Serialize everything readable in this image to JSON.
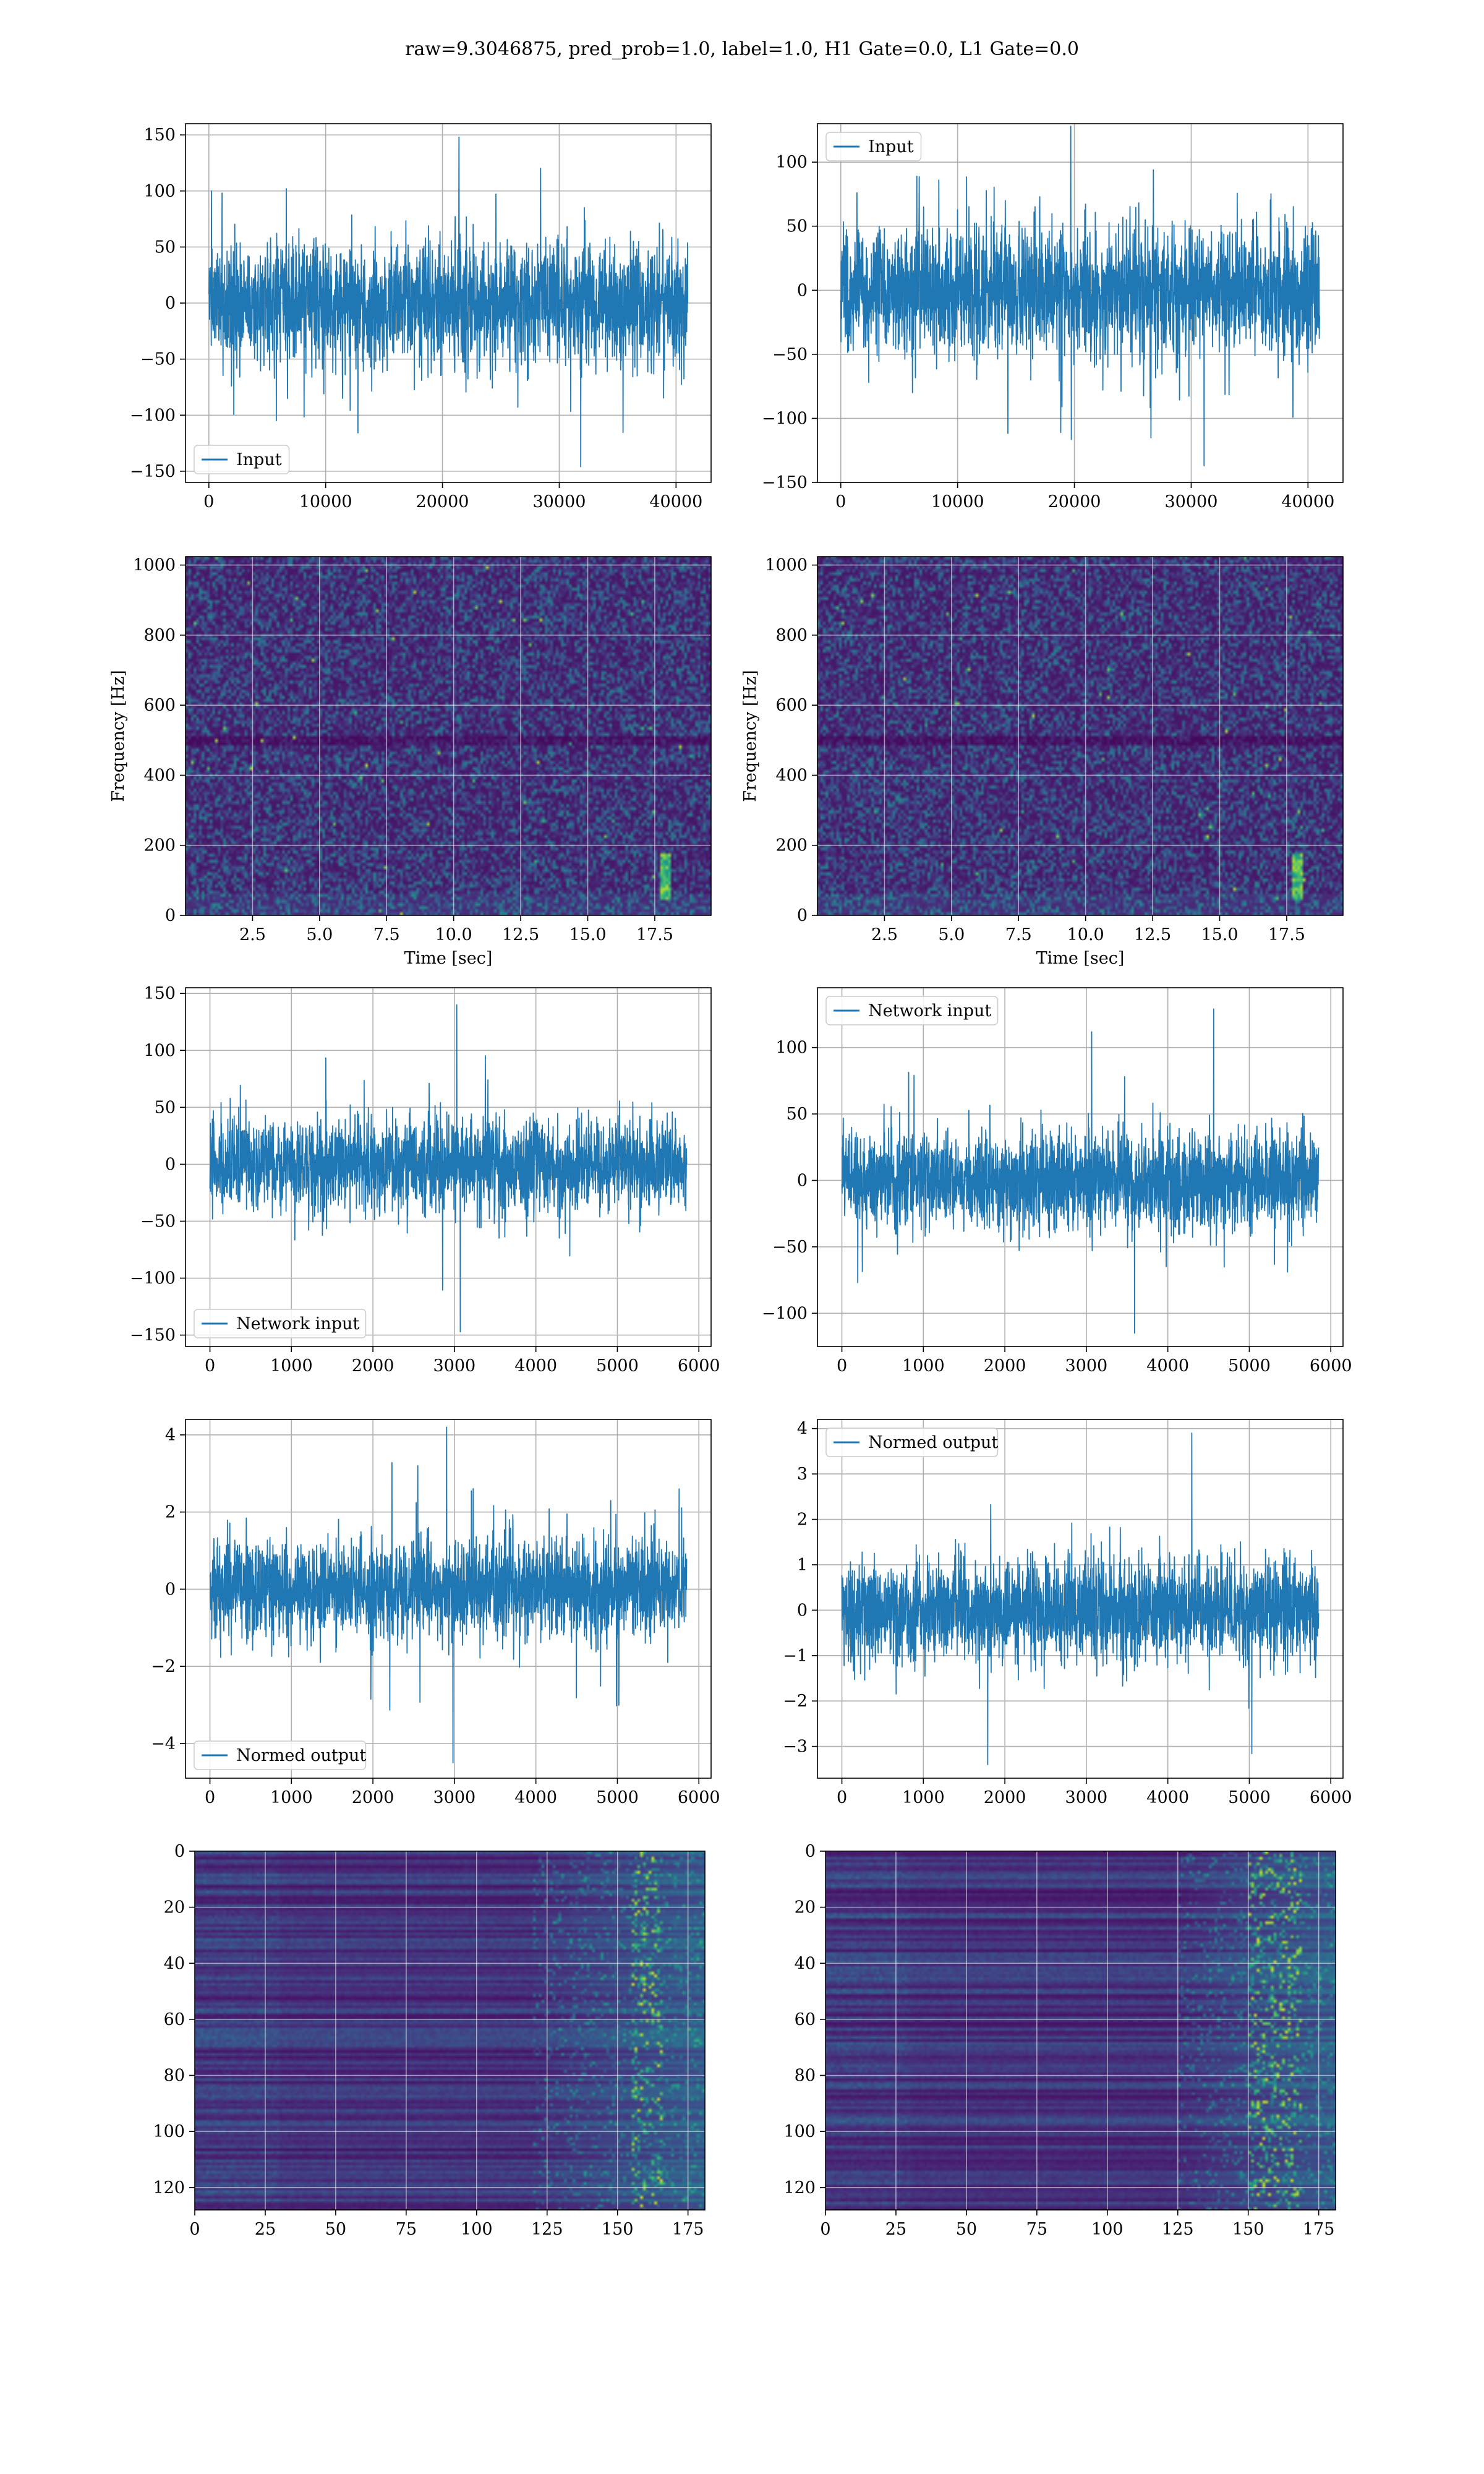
{
  "figure": {
    "suptitle": "raw=9.3046875, pred_prob=1.0, label=1.0, H1 Gate=0.0, L1 Gate=0.0"
  },
  "colors": {
    "line": "#1f77b4",
    "grid": "#b0b0b0",
    "viridis_low": "#440154",
    "viridis_mid": "#21918c",
    "viridis_high": "#fde725"
  },
  "chart_data": [
    {
      "id": "input-left",
      "type": "line",
      "title": "",
      "xlim": [
        -2000,
        43000
      ],
      "ylim": [
        -160,
        160
      ],
      "xticks": [
        0,
        10000,
        20000,
        30000,
        40000
      ],
      "xtick_labels": [
        "0",
        "10000",
        "20000",
        "30000",
        "40000"
      ],
      "yticks": [
        -150,
        -100,
        -50,
        0,
        50,
        100,
        150
      ],
      "ytick_labels": [
        "−150",
        "−100",
        "−50",
        "0",
        "50",
        "100",
        "150"
      ],
      "xlabel": "",
      "ylabel": "",
      "legend": {
        "label": "Input",
        "loc": "lower left"
      },
      "series": [
        {
          "name": "Input",
          "x_range": [
            0,
            41000
          ],
          "typical_envelope": [
            -60,
            60
          ],
          "peak_max": 148,
          "peak_min": -146
        }
      ]
    },
    {
      "id": "input-right",
      "type": "line",
      "title": "",
      "xlim": [
        -2000,
        43000
      ],
      "ylim": [
        -150,
        130
      ],
      "xticks": [
        0,
        10000,
        20000,
        30000,
        40000
      ],
      "xtick_labels": [
        "0",
        "10000",
        "20000",
        "30000",
        "40000"
      ],
      "yticks": [
        -150,
        -100,
        -50,
        0,
        50,
        100
      ],
      "ytick_labels": [
        "−150",
        "−100",
        "−50",
        "0",
        "50",
        "100"
      ],
      "xlabel": "",
      "ylabel": "",
      "legend": {
        "label": "Input",
        "loc": "upper left"
      },
      "series": [
        {
          "name": "Input",
          "x_range": [
            0,
            41000
          ],
          "typical_envelope": [
            -55,
            55
          ],
          "peak_max": 128,
          "peak_min": -137
        }
      ]
    },
    {
      "id": "spectrogram-left",
      "type": "heatmap",
      "title": "",
      "xlim": [
        0,
        19.6
      ],
      "ylim": [
        0,
        1024
      ],
      "xticks": [
        2.5,
        5.0,
        7.5,
        10.0,
        12.5,
        15.0,
        17.5
      ],
      "xtick_labels": [
        "2.5",
        "5.0",
        "7.5",
        "10.0",
        "12.5",
        "15.0",
        "17.5"
      ],
      "yticks": [
        0,
        200,
        400,
        600,
        800,
        1000
      ],
      "ytick_labels": [
        "0",
        "200",
        "400",
        "600",
        "800",
        "1000"
      ],
      "xlabel": "Time [sec]",
      "ylabel": "Frequency [Hz]",
      "colormap": "viridis",
      "features": {
        "dark_band_hz": 500,
        "bright_track": {
          "time": 17.9,
          "freq_range": [
            40,
            180
          ]
        }
      }
    },
    {
      "id": "spectrogram-right",
      "type": "heatmap",
      "title": "",
      "xlim": [
        0,
        19.6
      ],
      "ylim": [
        0,
        1024
      ],
      "xticks": [
        2.5,
        5.0,
        7.5,
        10.0,
        12.5,
        15.0,
        17.5
      ],
      "xtick_labels": [
        "2.5",
        "5.0",
        "7.5",
        "10.0",
        "12.5",
        "15.0",
        "17.5"
      ],
      "yticks": [
        0,
        200,
        400,
        600,
        800,
        1000
      ],
      "ytick_labels": [
        "0",
        "200",
        "400",
        "600",
        "800",
        "1000"
      ],
      "xlabel": "Time [sec]",
      "ylabel": "Frequency [Hz]",
      "colormap": "viridis",
      "features": {
        "dark_band_hz": 500,
        "bright_track": {
          "time": 17.9,
          "freq_range": [
            40,
            180
          ]
        }
      }
    },
    {
      "id": "network-input-left",
      "type": "line",
      "title": "",
      "xlim": [
        -300,
        6150
      ],
      "ylim": [
        -160,
        155
      ],
      "xticks": [
        0,
        1000,
        2000,
        3000,
        4000,
        5000,
        6000
      ],
      "xtick_labels": [
        "0",
        "1000",
        "2000",
        "3000",
        "4000",
        "5000",
        "6000"
      ],
      "yticks": [
        -150,
        -100,
        -50,
        0,
        50,
        100,
        150
      ],
      "ytick_labels": [
        "−150",
        "−100",
        "−50",
        "0",
        "50",
        "100",
        "150"
      ],
      "xlabel": "",
      "ylabel": "",
      "legend": {
        "label": "Network input",
        "loc": "lower left"
      },
      "series": [
        {
          "name": "Network input",
          "x_range": [
            0,
            5850
          ],
          "typical_envelope": [
            -45,
            45
          ],
          "peak_max": 140,
          "peak_min": -147
        }
      ]
    },
    {
      "id": "network-input-right",
      "type": "line",
      "title": "",
      "xlim": [
        -300,
        6150
      ],
      "ylim": [
        -125,
        145
      ],
      "xticks": [
        0,
        1000,
        2000,
        3000,
        4000,
        5000,
        6000
      ],
      "xtick_labels": [
        "0",
        "1000",
        "2000",
        "3000",
        "4000",
        "5000",
        "6000"
      ],
      "yticks": [
        -100,
        -50,
        0,
        50,
        100
      ],
      "ytick_labels": [
        "−100",
        "−50",
        "0",
        "50",
        "100"
      ],
      "xlabel": "",
      "ylabel": "",
      "legend": {
        "label": "Network input",
        "loc": "upper left"
      },
      "series": [
        {
          "name": "Network input",
          "x_range": [
            0,
            5850
          ],
          "typical_envelope": [
            -40,
            40
          ],
          "peak_max": 129,
          "peak_min": -115
        }
      ]
    },
    {
      "id": "normed-output-left",
      "type": "line",
      "title": "",
      "xlim": [
        -300,
        6150
      ],
      "ylim": [
        -4.9,
        4.4
      ],
      "xticks": [
        0,
        1000,
        2000,
        3000,
        4000,
        5000,
        6000
      ],
      "xtick_labels": [
        "0",
        "1000",
        "2000",
        "3000",
        "4000",
        "5000",
        "6000"
      ],
      "yticks": [
        -4,
        -2,
        0,
        2,
        4
      ],
      "ytick_labels": [
        "−4",
        "−2",
        "0",
        "2",
        "4"
      ],
      "xlabel": "",
      "ylabel": "",
      "legend": {
        "label": "Normed output",
        "loc": "lower left"
      },
      "series": [
        {
          "name": "Normed output",
          "x_range": [
            0,
            5850
          ],
          "typical_envelope": [
            -1.4,
            1.4
          ],
          "peak_max": 4.2,
          "peak_min": -4.5
        }
      ]
    },
    {
      "id": "normed-output-right",
      "type": "line",
      "title": "",
      "xlim": [
        -300,
        6150
      ],
      "ylim": [
        -3.7,
        4.2
      ],
      "xticks": [
        0,
        1000,
        2000,
        3000,
        4000,
        5000,
        6000
      ],
      "xtick_labels": [
        "0",
        "1000",
        "2000",
        "3000",
        "4000",
        "5000",
        "6000"
      ],
      "yticks": [
        -3,
        -2,
        -1,
        0,
        1,
        2,
        3,
        4
      ],
      "ytick_labels": [
        "−3",
        "−2",
        "−1",
        "0",
        "1",
        "2",
        "3",
        "4"
      ],
      "xlabel": "",
      "ylabel": "",
      "legend": {
        "label": "Normed output",
        "loc": "upper left"
      },
      "series": [
        {
          "name": "Normed output",
          "x_range": [
            0,
            5850
          ],
          "typical_envelope": [
            -1.3,
            1.3
          ],
          "peak_max": 3.9,
          "peak_min": -3.4
        }
      ]
    },
    {
      "id": "features-left",
      "type": "heatmap",
      "title": "",
      "xlim": [
        0,
        181
      ],
      "ylim": [
        128,
        0
      ],
      "xticks": [
        0,
        25,
        50,
        75,
        100,
        125,
        150,
        175
      ],
      "xtick_labels": [
        "0",
        "25",
        "50",
        "75",
        "100",
        "125",
        "150",
        "175"
      ],
      "yticks": [
        0,
        20,
        40,
        60,
        80,
        100,
        120
      ],
      "ytick_labels": [
        "0",
        "20",
        "40",
        "60",
        "80",
        "100",
        "120"
      ],
      "xlabel": "",
      "ylabel": "",
      "colormap": "viridis",
      "features": {
        "active_columns": [
          120,
          181
        ],
        "bright_columns": [
          155,
          165
        ]
      }
    },
    {
      "id": "features-right",
      "type": "heatmap",
      "title": "",
      "xlim": [
        0,
        181
      ],
      "ylim": [
        128,
        0
      ],
      "xticks": [
        0,
        25,
        50,
        75,
        100,
        125,
        150,
        175
      ],
      "xtick_labels": [
        "0",
        "25",
        "50",
        "75",
        "100",
        "125",
        "150",
        "175"
      ],
      "yticks": [
        0,
        20,
        40,
        60,
        80,
        100,
        120
      ],
      "ytick_labels": [
        "0",
        "20",
        "40",
        "60",
        "80",
        "100",
        "120"
      ],
      "xlabel": "",
      "ylabel": "",
      "colormap": "viridis",
      "features": {
        "active_columns": [
          125,
          181
        ],
        "bright_columns": [
          150,
          168
        ]
      }
    }
  ]
}
